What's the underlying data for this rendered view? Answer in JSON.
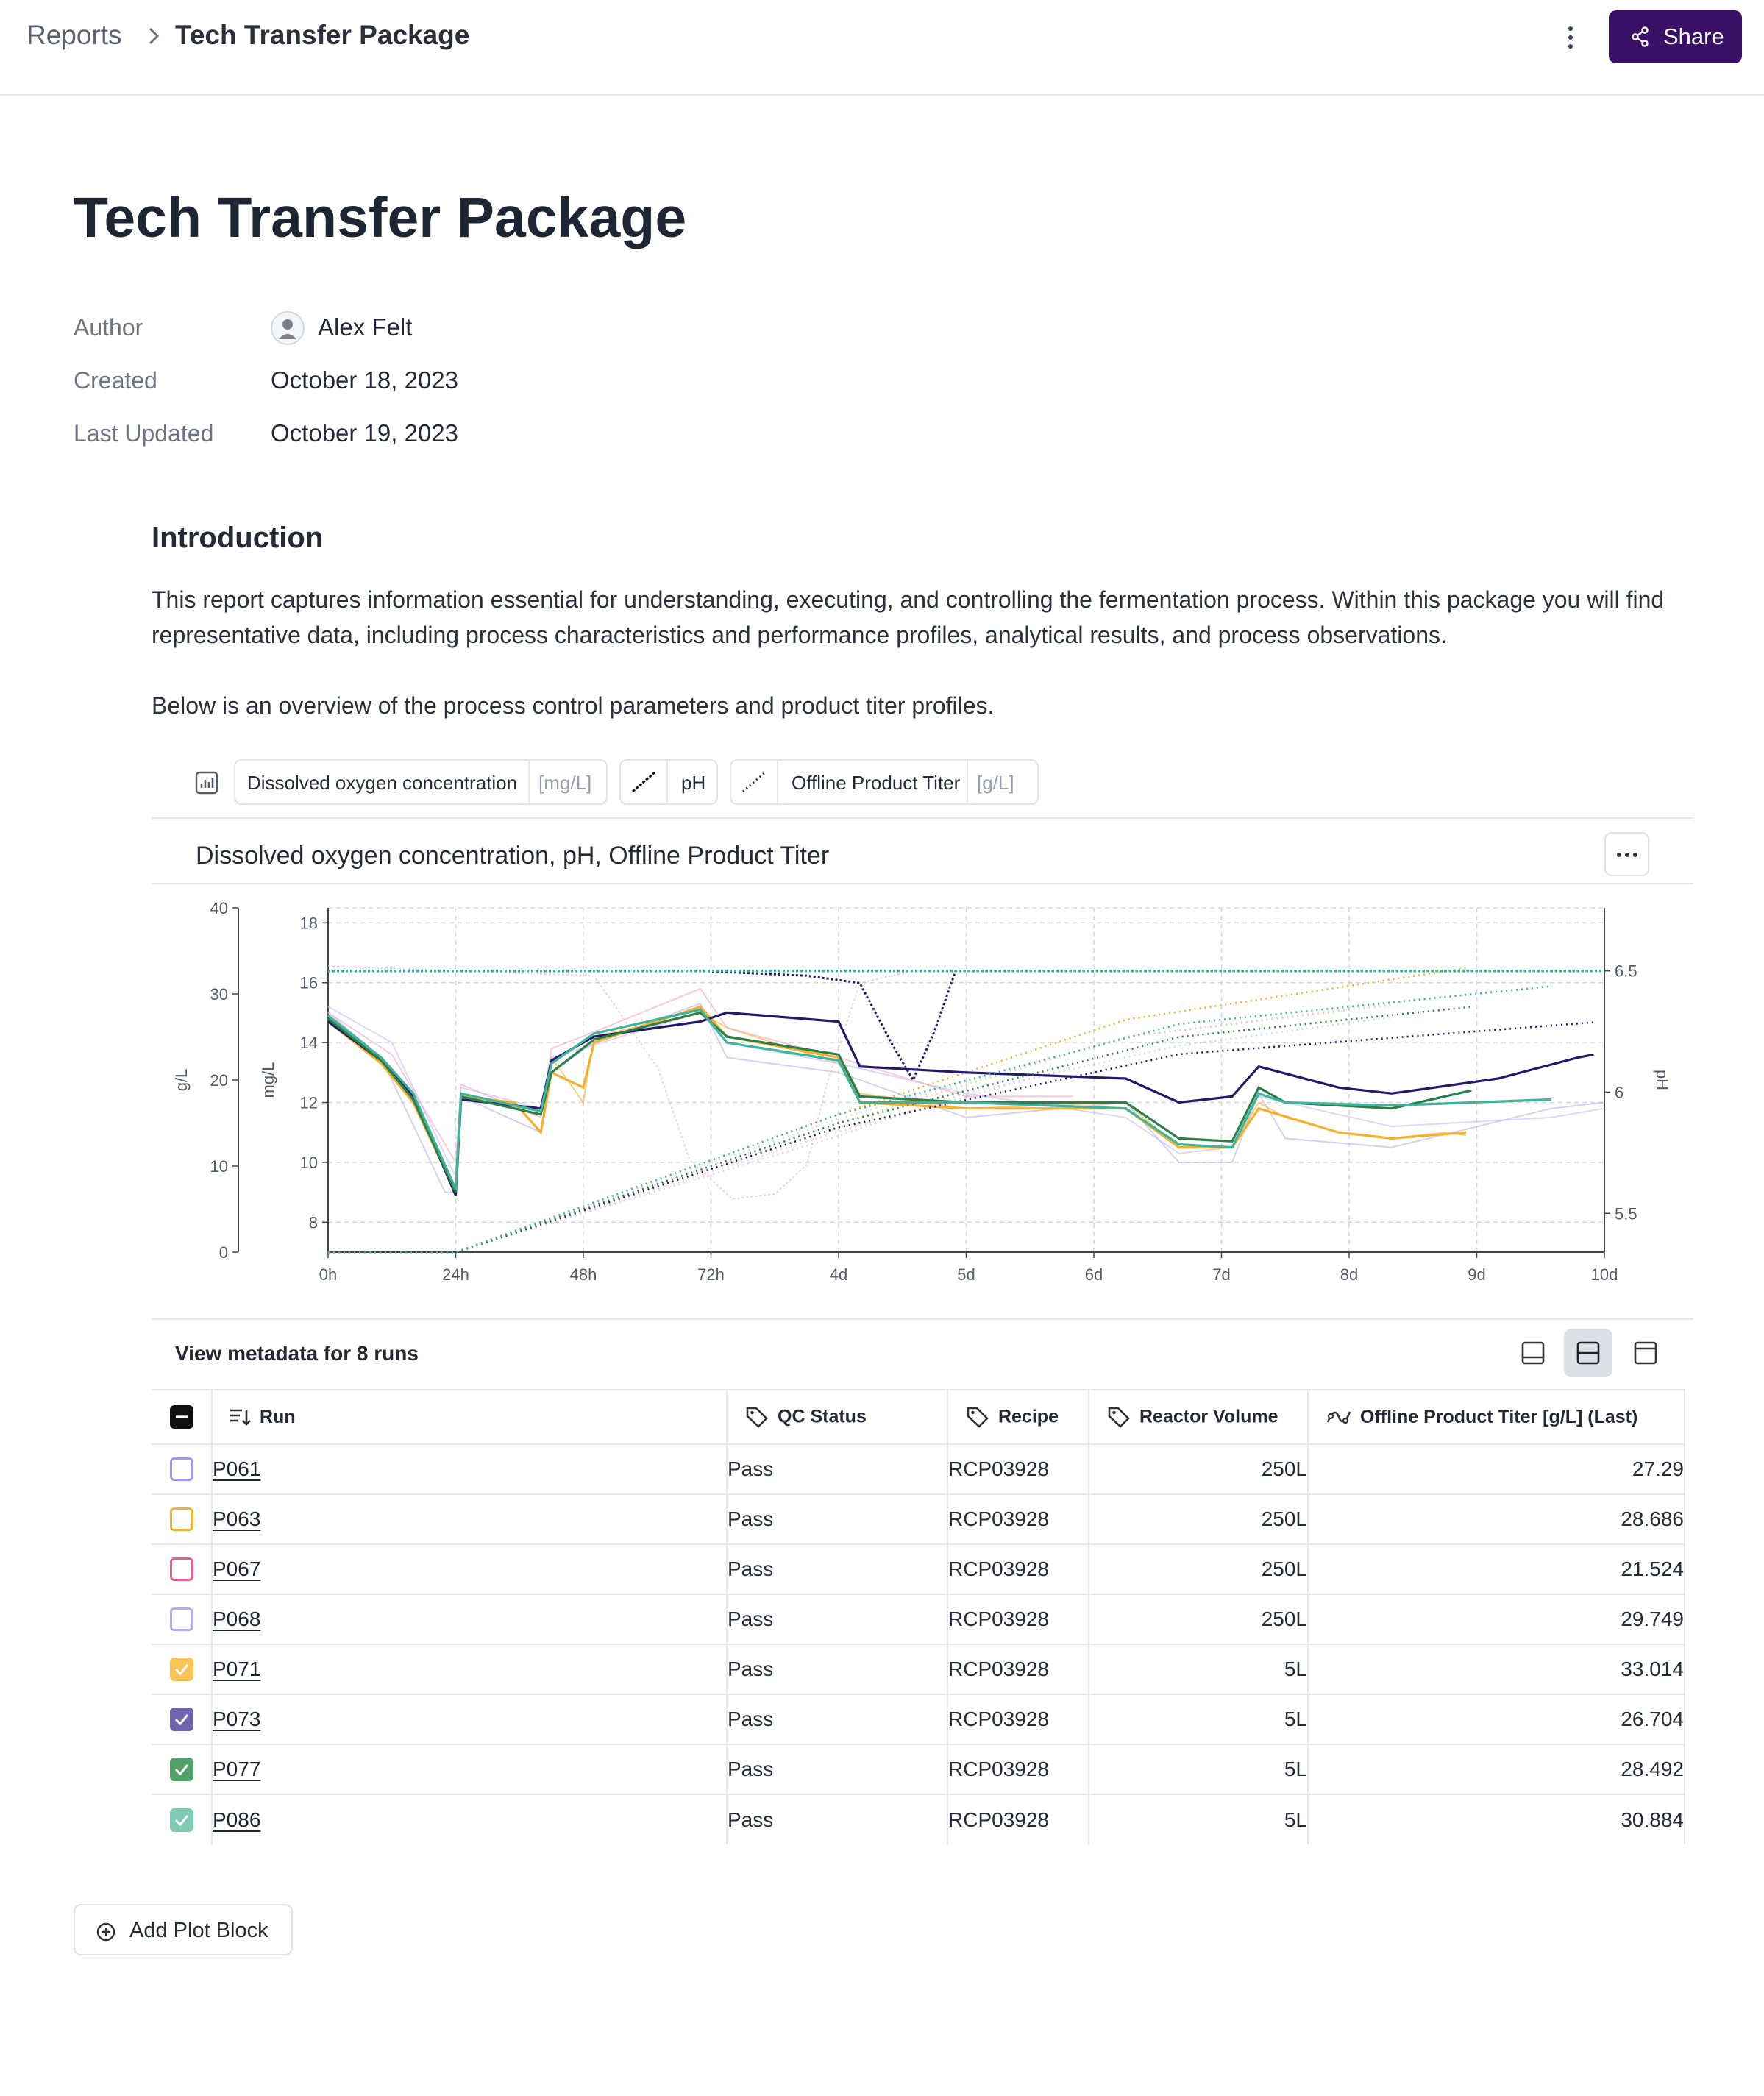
{
  "breadcrumb": {
    "root": "Reports",
    "current": "Tech Transfer Package"
  },
  "toolbar": {
    "share_label": "Share",
    "more_icon": "vertical-ellipsis-icon",
    "share_icon": "share-icon"
  },
  "report": {
    "title": "Tech Transfer Package",
    "meta": [
      {
        "label": "Author",
        "value": "Alex Felt"
      },
      {
        "label": "Created",
        "value": "October 18, 2023"
      },
      {
        "label": "Last Updated",
        "value": "October 19, 2023"
      }
    ]
  },
  "intro": {
    "heading": "Introduction",
    "paragraph1": "This report captures information essential for understanding, executing, and controlling the fermentation process. Within this package you will find representative data, including process characteristics and performance profiles, analytical results, and process observations.",
    "paragraph2": "Below is an overview of the process control parameters and product titer profiles."
  },
  "chips": [
    {
      "name": "Dissolved oxygen concentration",
      "unit": "[mg/L]",
      "line": "solid"
    },
    {
      "name": "pH",
      "unit": "",
      "line": "dash"
    },
    {
      "name": "Offline Product Titer",
      "unit": "[g/L]",
      "line": "dotted"
    }
  ],
  "plot": {
    "title": "Dissolved oxygen concentration, pH, Offline Product Titer",
    "menu_icon": "horizontal-ellipsis-icon"
  },
  "chart_data": {
    "type": "line",
    "title": "Dissolved oxygen concentration, pH, Offline Product Titer",
    "x_ticks": [
      "0h",
      "24h",
      "48h",
      "72h",
      "4d",
      "5d",
      "6d",
      "7d",
      "8d",
      "9d",
      "10d"
    ],
    "xlim_hours": [
      0,
      240
    ],
    "axes": {
      "titer": {
        "label": "g/L",
        "ticks": [
          "0",
          "10",
          "20",
          "30",
          "40"
        ],
        "lim": [
          0,
          40
        ]
      },
      "do": {
        "label": "mg/L",
        "ticks": [
          "8",
          "10",
          "12",
          "14",
          "16",
          "18"
        ],
        "lim": [
          7,
          18.5
        ]
      },
      "ph": {
        "label": "pH",
        "ticks": [
          "5.5",
          "6",
          "6.5"
        ],
        "lim": [
          5.34,
          6.76
        ]
      }
    },
    "grid": true,
    "series": [
      {
        "name": "P061",
        "color": "#b8b3ee",
        "do": [
          [
            0,
            15
          ],
          [
            10,
            13.5
          ],
          [
            22,
            9
          ],
          [
            24,
            9
          ],
          [
            25,
            12.2
          ],
          [
            40,
            11
          ],
          [
            42,
            13
          ],
          [
            50,
            14
          ],
          [
            70,
            15.3
          ],
          [
            75,
            13.5
          ],
          [
            96,
            13
          ],
          [
            120,
            11.5
          ],
          [
            150,
            12
          ],
          [
            160,
            10
          ],
          [
            170,
            10
          ],
          [
            175,
            12.3
          ],
          [
            180,
            10.8
          ],
          [
            200,
            10.5
          ],
          [
            230,
            11.8
          ],
          [
            240,
            12
          ]
        ],
        "ph": [
          [
            0,
            6.5
          ],
          [
            240,
            6.5
          ]
        ],
        "titer": [
          [
            0,
            0
          ],
          [
            24,
            0
          ],
          [
            96,
            13.5
          ],
          [
            120,
            18.5
          ],
          [
            160,
            24
          ],
          [
            200,
            27.3
          ]
        ]
      },
      {
        "name": "P063",
        "color": "#f5b02f",
        "do": [
          [
            0,
            14.8
          ],
          [
            10,
            13.3
          ],
          [
            16,
            12
          ],
          [
            24,
            9.2
          ],
          [
            25,
            12.2
          ],
          [
            35,
            12
          ],
          [
            40,
            11
          ],
          [
            42,
            13.5
          ],
          [
            48,
            12
          ],
          [
            50,
            14.2
          ],
          [
            70,
            15
          ],
          [
            75,
            14.5
          ],
          [
            96,
            13.3
          ],
          [
            100,
            12.3
          ],
          [
            120,
            11.8
          ],
          [
            150,
            12
          ],
          [
            160,
            10.5
          ],
          [
            170,
            10.5
          ],
          [
            175,
            12
          ],
          [
            180,
            11.5
          ],
          [
            190,
            11
          ],
          [
            200,
            10.8
          ],
          [
            210,
            11
          ],
          [
            214,
            10.9
          ]
        ],
        "ph": [
          [
            0,
            6.5
          ],
          [
            240,
            6.5
          ]
        ],
        "titer": [
          [
            0,
            0
          ],
          [
            24,
            0
          ],
          [
            96,
            15
          ],
          [
            150,
            25
          ],
          [
            200,
            28.7
          ]
        ]
      },
      {
        "name": "P067",
        "color": "#f3a6c2",
        "do": [
          [
            0,
            15
          ],
          [
            12,
            13.6
          ],
          [
            24,
            10
          ],
          [
            25,
            12.6
          ],
          [
            40,
            11.5
          ],
          [
            42,
            13.8
          ],
          [
            52,
            14.5
          ],
          [
            70,
            15.8
          ],
          [
            75,
            14.5
          ],
          [
            96,
            13.5
          ],
          [
            120,
            12.2
          ],
          [
            140,
            12.2
          ]
        ],
        "ph": [
          [
            0,
            6.52
          ],
          [
            50,
            6.48
          ],
          [
            62,
            6.1
          ],
          [
            68,
            5.72
          ],
          [
            76,
            5.56
          ],
          [
            84,
            5.58
          ],
          [
            90,
            5.7
          ],
          [
            94,
            6.05
          ],
          [
            100,
            6.45
          ],
          [
            110,
            6.5
          ],
          [
            140,
            6.5
          ]
        ],
        "titer": [
          [
            0,
            0
          ],
          [
            24,
            0
          ],
          [
            96,
            14
          ],
          [
            140,
            21.5
          ]
        ]
      },
      {
        "name": "P068",
        "color": "#c3befa",
        "do": [
          [
            0,
            15.2
          ],
          [
            12,
            14
          ],
          [
            24,
            9.5
          ],
          [
            25,
            12.5
          ],
          [
            40,
            11.8
          ],
          [
            42,
            13.5
          ],
          [
            70,
            15
          ],
          [
            75,
            14
          ],
          [
            96,
            13.3
          ],
          [
            120,
            12.3
          ],
          [
            150,
            11.5
          ],
          [
            160,
            10.3
          ],
          [
            170,
            10.5
          ],
          [
            175,
            12.2
          ],
          [
            200,
            11.2
          ],
          [
            230,
            11.5
          ],
          [
            240,
            11.8
          ]
        ],
        "ph": [
          [
            0,
            6.5
          ],
          [
            240,
            6.5
          ]
        ],
        "titer": [
          [
            0,
            0
          ],
          [
            24,
            0
          ],
          [
            96,
            15.5
          ],
          [
            150,
            25
          ],
          [
            210,
            29.7
          ]
        ]
      },
      {
        "name": "P071",
        "color": "#f5b02f",
        "do": [
          [
            0,
            14.7
          ],
          [
            10,
            13.3
          ],
          [
            16,
            12
          ],
          [
            24,
            9
          ],
          [
            25,
            12.2
          ],
          [
            35,
            12
          ],
          [
            40,
            11
          ],
          [
            42,
            13
          ],
          [
            48,
            12.5
          ],
          [
            50,
            14
          ],
          [
            70,
            15.2
          ],
          [
            75,
            14.2
          ],
          [
            96,
            13.5
          ],
          [
            100,
            12
          ],
          [
            120,
            11.8
          ],
          [
            150,
            11.8
          ],
          [
            160,
            10.5
          ],
          [
            170,
            10.5
          ],
          [
            175,
            11.8
          ],
          [
            190,
            11
          ],
          [
            200,
            10.8
          ],
          [
            214,
            11
          ]
        ],
        "ph": [
          [
            0,
            6.5
          ],
          [
            240,
            6.5
          ]
        ],
        "titer": [
          [
            0,
            0
          ],
          [
            24,
            0
          ],
          [
            96,
            16
          ],
          [
            150,
            27
          ],
          [
            214,
            33
          ]
        ]
      },
      {
        "name": "P073",
        "color": "#241a6b",
        "do": [
          [
            0,
            14.7
          ],
          [
            10,
            13.4
          ],
          [
            16,
            12.2
          ],
          [
            24,
            8.9
          ],
          [
            25,
            12.1
          ],
          [
            40,
            11.8
          ],
          [
            42,
            13.4
          ],
          [
            50,
            14.2
          ],
          [
            70,
            14.7
          ],
          [
            75,
            15
          ],
          [
            96,
            14.7
          ],
          [
            100,
            13.2
          ],
          [
            120,
            13
          ],
          [
            150,
            12.8
          ],
          [
            160,
            12
          ],
          [
            170,
            12.2
          ],
          [
            175,
            13.2
          ],
          [
            190,
            12.5
          ],
          [
            200,
            12.3
          ],
          [
            220,
            12.8
          ],
          [
            235,
            13.5
          ],
          [
            238,
            13.6
          ]
        ],
        "ph": [
          [
            0,
            6.5
          ],
          [
            70,
            6.5
          ],
          [
            90,
            6.48
          ],
          [
            100,
            6.45
          ],
          [
            106,
            6.2
          ],
          [
            110,
            6.05
          ],
          [
            114,
            6.25
          ],
          [
            118,
            6.5
          ],
          [
            238,
            6.5
          ]
        ],
        "titer": [
          [
            0,
            0
          ],
          [
            24,
            0
          ],
          [
            96,
            14.5
          ],
          [
            160,
            23
          ],
          [
            238,
            26.7
          ]
        ]
      },
      {
        "name": "P077",
        "color": "#2d7f49",
        "do": [
          [
            0,
            14.8
          ],
          [
            10,
            13.4
          ],
          [
            16,
            12.1
          ],
          [
            24,
            9
          ],
          [
            25,
            12.2
          ],
          [
            40,
            11.6
          ],
          [
            42,
            13
          ],
          [
            50,
            14.1
          ],
          [
            70,
            15
          ],
          [
            75,
            14.2
          ],
          [
            96,
            13.6
          ],
          [
            100,
            12.2
          ],
          [
            120,
            12
          ],
          [
            150,
            12
          ],
          [
            160,
            10.8
          ],
          [
            170,
            10.7
          ],
          [
            175,
            12.5
          ],
          [
            180,
            12
          ],
          [
            200,
            11.8
          ],
          [
            215,
            12.4
          ]
        ],
        "ph": [
          [
            0,
            6.5
          ],
          [
            240,
            6.5
          ]
        ],
        "titer": [
          [
            0,
            0
          ],
          [
            24,
            0
          ],
          [
            96,
            15
          ],
          [
            160,
            25
          ],
          [
            215,
            28.5
          ]
        ]
      },
      {
        "name": "P086",
        "color": "#3fb39b",
        "do": [
          [
            0,
            14.9
          ],
          [
            10,
            13.5
          ],
          [
            16,
            12.3
          ],
          [
            24,
            9.1
          ],
          [
            25,
            12.3
          ],
          [
            40,
            11.7
          ],
          [
            42,
            13.3
          ],
          [
            50,
            14.3
          ],
          [
            70,
            15.1
          ],
          [
            75,
            14
          ],
          [
            96,
            13.4
          ],
          [
            100,
            12
          ],
          [
            120,
            12
          ],
          [
            150,
            11.8
          ],
          [
            160,
            10.6
          ],
          [
            170,
            10.5
          ],
          [
            175,
            12.3
          ],
          [
            180,
            12
          ],
          [
            200,
            11.9
          ],
          [
            230,
            12.1
          ]
        ],
        "ph": [
          [
            0,
            6.5
          ],
          [
            240,
            6.5
          ]
        ],
        "titer": [
          [
            0,
            0
          ],
          [
            24,
            0
          ],
          [
            96,
            16
          ],
          [
            160,
            26.5
          ],
          [
            230,
            30.9
          ]
        ]
      }
    ]
  },
  "metadata": {
    "heading": "View metadata for 8 runs",
    "view_icons": [
      "panel-bottom-icon",
      "panel-split-icon",
      "panel-top-icon"
    ],
    "columns": [
      "Run",
      "QC Status",
      "Recipe",
      "Reactor Volume",
      "Offline Product Titer [g/L] (Last)"
    ],
    "column_icons": [
      "sort-icon",
      "tag-icon",
      "tag-icon",
      "tag-icon",
      "trend-icon"
    ],
    "rows": [
      {
        "run": "P061",
        "qc": "Pass",
        "recipe": "RCP03928",
        "volume": "250L",
        "titer": "27.29",
        "checked": false,
        "color": "#9d97f0"
      },
      {
        "run": "P063",
        "qc": "Pass",
        "recipe": "RCP03928",
        "volume": "250L",
        "titer": "28.686",
        "checked": false,
        "color": "#f5b02f"
      },
      {
        "run": "P067",
        "qc": "Pass",
        "recipe": "RCP03928",
        "volume": "250L",
        "titer": "21.524",
        "checked": false,
        "color": "#e35d9b"
      },
      {
        "run": "P068",
        "qc": "Pass",
        "recipe": "RCP03928",
        "volume": "250L",
        "titer": "29.749",
        "checked": false,
        "color": "#b1acf5"
      },
      {
        "run": "P071",
        "qc": "Pass",
        "recipe": "RCP03928",
        "volume": "5L",
        "titer": "33.014",
        "checked": true,
        "color": "#f8c45a"
      },
      {
        "run": "P073",
        "qc": "Pass",
        "recipe": "RCP03928",
        "volume": "5L",
        "titer": "26.704",
        "checked": true,
        "color": "#6f63ad"
      },
      {
        "run": "P077",
        "qc": "Pass",
        "recipe": "RCP03928",
        "volume": "5L",
        "titer": "28.492",
        "checked": true,
        "color": "#54a06c"
      },
      {
        "run": "P086",
        "qc": "Pass",
        "recipe": "RCP03928",
        "volume": "5L",
        "titer": "30.884",
        "checked": true,
        "color": "#7fcbb6"
      }
    ]
  },
  "add_block": {
    "label": "Add Plot Block",
    "icon": "plus-circle-icon"
  }
}
